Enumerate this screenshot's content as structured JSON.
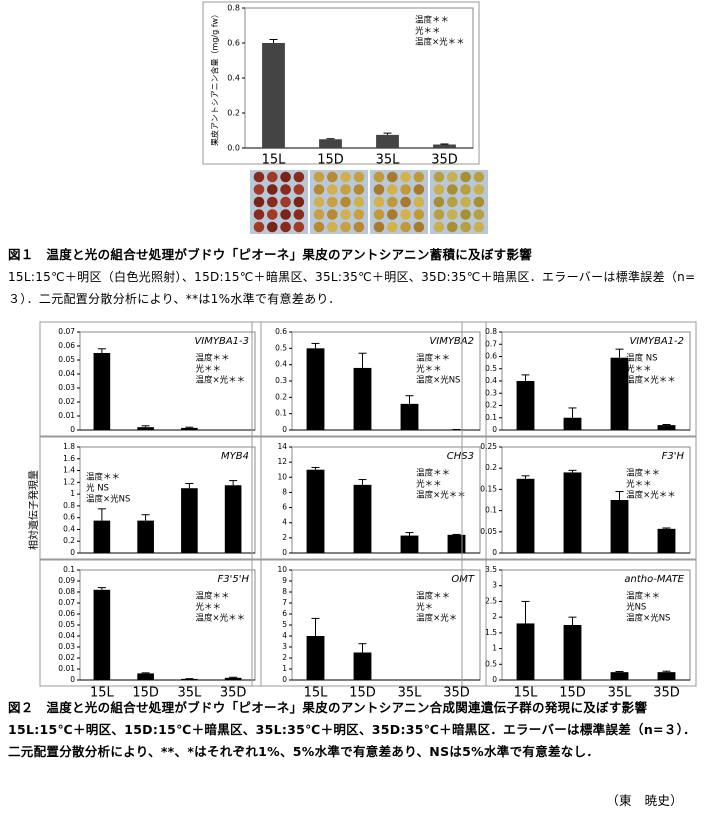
{
  "chart_data": [
    {
      "type": "bar",
      "ylabel": "果皮アントシアニン含量（mg/g fw）",
      "categories": [
        "15L",
        "15D",
        "35L",
        "35D"
      ],
      "values": [
        0.6,
        0.05,
        0.075,
        0.02
      ],
      "errors": [
        0.02,
        0.003,
        0.01,
        0.003
      ],
      "color": "#444444",
      "ylim": [
        0,
        0.8
      ],
      "yticks": [
        {
          "value": 0,
          "label": "0.0"
        },
        0.2,
        0.4,
        0.6,
        0.8
      ],
      "annotations": [
        "温度＊＊",
        "光＊＊",
        "温度×光＊＊"
      ]
    },
    {
      "type": "bar",
      "title": "VIMYBA1-3",
      "categories": [
        null,
        null,
        null,
        null
      ],
      "values": [
        0.055,
        0.002,
        0.0015,
        0
      ],
      "errors": [
        0.003,
        0.001,
        0.0005,
        0
      ],
      "color": "#000000",
      "ylim": [
        0,
        0.07
      ],
      "yticks": [
        0,
        0.01,
        0.02,
        0.03,
        0.04,
        0.05,
        0.06,
        0.07
      ],
      "annotations": [
        "温度＊＊",
        "光＊＊",
        "温度×光＊＊"
      ]
    },
    {
      "type": "bar",
      "title": "VIMYBA2",
      "categories": [
        null,
        null,
        null,
        null
      ],
      "values": [
        0.5,
        0.38,
        0.16,
        0.002
      ],
      "errors": [
        0.03,
        0.09,
        0.05,
        0.001
      ],
      "color": "#000000",
      "ylim": [
        0,
        0.6
      ],
      "yticks": [
        0,
        0.1,
        0.2,
        0.3,
        0.4,
        0.5,
        0.6
      ],
      "annotations": [
        "温度＊＊",
        "光＊＊",
        "温度×光NS"
      ]
    },
    {
      "type": "bar",
      "title": "VIMYBA1-2",
      "categories": [
        null,
        null,
        null,
        null
      ],
      "values": [
        0.4,
        0.1,
        0.59,
        0.04
      ],
      "errors": [
        0.05,
        0.08,
        0.07,
        0.005
      ],
      "color": "#000000",
      "ylim": [
        0,
        0.8
      ],
      "yticks": [
        0,
        0.1,
        0.2,
        0.3,
        0.4,
        0.5,
        0.6,
        0.7,
        0.8
      ],
      "annotations": [
        "温度 NS",
        "光＊＊",
        "温度×光＊＊"
      ]
    },
    {
      "type": "bar",
      "title": "MYB4",
      "categories": [
        null,
        null,
        null,
        null
      ],
      "values": [
        0.55,
        0.55,
        1.1,
        1.15
      ],
      "errors": [
        0.2,
        0.1,
        0.08,
        0.08
      ],
      "color": "#000000",
      "ylim": [
        0,
        1.8
      ],
      "yticks": [
        0,
        0.2,
        0.4,
        0.6,
        0.8,
        1,
        1.2,
        1.4,
        1.6,
        1.8
      ],
      "annotations": [
        "温度＊＊",
        "光 NS",
        "温度×光NS"
      ]
    },
    {
      "type": "bar",
      "title": "CHS3",
      "categories": [
        null,
        null,
        null,
        null
      ],
      "values": [
        11,
        9,
        2.3,
        2.4
      ],
      "errors": [
        0.3,
        0.7,
        0.4,
        0.05
      ],
      "color": "#000000",
      "ylim": [
        0,
        14
      ],
      "yticks": [
        0,
        2,
        4,
        6,
        8,
        10,
        12,
        14
      ],
      "annotations": [
        "温度＊＊",
        "光＊＊",
        "温度×光＊＊"
      ]
    },
    {
      "type": "bar",
      "title": "F3'H",
      "categories": [
        null,
        null,
        null,
        null
      ],
      "values": [
        0.175,
        0.19,
        0.125,
        0.057
      ],
      "errors": [
        0.007,
        0.005,
        0.02,
        0.002
      ],
      "color": "#000000",
      "ylim": [
        0,
        0.25
      ],
      "yticks": [
        0,
        0.05,
        0.1,
        0.15,
        0.2,
        0.25
      ],
      "annotations": [
        "温度＊＊",
        "光＊＊",
        "温度×光＊＊"
      ]
    },
    {
      "type": "bar",
      "title": "F3'5'H",
      "categories": [
        "15L",
        "15D",
        "35L",
        "35D"
      ],
      "values": [
        0.082,
        0.006,
        0.001,
        0.002
      ],
      "errors": [
        0.002,
        0.0005,
        0.0002,
        0.0005
      ],
      "color": "#000000",
      "ylim": [
        0,
        0.1
      ],
      "yticks": [
        0,
        0.01,
        0.02,
        0.03,
        0.04,
        0.05,
        0.06,
        0.07,
        0.08,
        0.09,
        0.1
      ],
      "annotations": [
        "温度＊＊",
        "光＊＊",
        "温度×光＊＊"
      ]
    },
    {
      "type": "bar",
      "title": "OMT",
      "categories": [
        "15L",
        "15D",
        "35L",
        "35D"
      ],
      "values": [
        4,
        2.5,
        0,
        0
      ],
      "errors": [
        1.6,
        0.8,
        0,
        0
      ],
      "color": "#000000",
      "ylim": [
        0,
        10
      ],
      "yticks": [
        0,
        1,
        2,
        3,
        4,
        5,
        6,
        7,
        8,
        9,
        10
      ],
      "annotations": [
        "温度＊＊",
        "光＊",
        "温度×光＊"
      ]
    },
    {
      "type": "bar",
      "title": "antho-MATE",
      "categories": [
        "15L",
        "15D",
        "35L",
        "35D"
      ],
      "values": [
        1.8,
        1.75,
        0.25,
        0.25
      ],
      "errors": [
        0.7,
        0.25,
        0.02,
        0.03
      ],
      "color": "#000000",
      "ylim": [
        0,
        3.5
      ],
      "yticks": [
        0,
        0.5,
        1,
        1.5,
        2,
        2.5,
        3,
        3.5
      ],
      "annotations": [
        "温度＊＊",
        "光NS",
        "温度×光NS"
      ]
    }
  ],
  "figure1": {
    "caption_title": "図１　温度と光の組合せ処理がブドウ「ピオーネ」果皮のアントシアニン蓄積に及ぼす影響",
    "caption_note": "15L:15℃＋明区（白色光照射）、15D:15℃＋暗黒区、35L:35℃＋明区、35D:35℃＋暗黒区．エラーバーは標準誤差（n=３）．二元配置分散分析により、**は1%水準で有意差あり．"
  },
  "figure2": {
    "ylabel": "相対遺伝子発現量",
    "caption": "図２　温度と光の組合せ処理がブドウ「ピオーネ」果皮のアントシアニン合成関連遺伝子群の発現に及ぼす影響　15L:15℃＋明区、15D:15℃＋暗黒区、35L:35℃＋明区、35D:35℃＋暗黒区．エラーバーは標準誤差（n=３）．二元配置分散分析により、**、*はそれぞれ1%、5%水準で有意差あり、NSは5%水準で有意差なし．"
  },
  "author": "（東　暁史）"
}
